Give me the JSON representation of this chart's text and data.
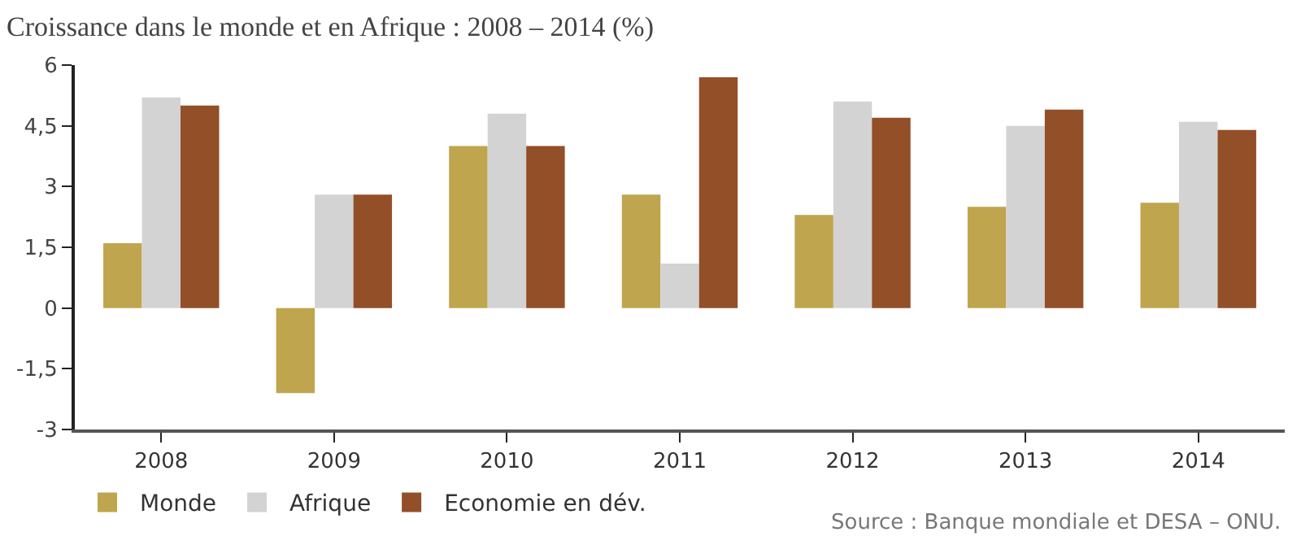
{
  "chart_data": {
    "type": "bar",
    "title": "Croissance dans le monde et en Afrique : 2008 – 2014 (%)",
    "categories": [
      "2008",
      "2009",
      "2010",
      "2011",
      "2012",
      "2013",
      "2014"
    ],
    "series": [
      {
        "name": "Monde",
        "color": "#bfa54e",
        "values": [
          1.6,
          -2.1,
          4.0,
          2.8,
          2.3,
          2.5,
          2.6
        ]
      },
      {
        "name": "Afrique",
        "color": "#d3d3d3",
        "values": [
          5.2,
          2.8,
          4.8,
          1.1,
          5.1,
          4.5,
          4.6
        ]
      },
      {
        "name": "Economie en dév.",
        "color": "#934f28",
        "values": [
          5.0,
          2.8,
          4.0,
          5.7,
          4.7,
          4.9,
          4.4
        ]
      }
    ],
    "ylim": [
      -3,
      6
    ],
    "yticks": [
      {
        "value": -3,
        "label": "-3"
      },
      {
        "value": -1.5,
        "label": "-1,5"
      },
      0,
      {
        "value": 1.5,
        "label": "1,5"
      },
      3,
      {
        "value": 4.5,
        "label": "4,5"
      },
      6
    ],
    "legend": "bottom left",
    "annotations": [
      "Source : Banque mondiale et DESA – ONU."
    ]
  }
}
